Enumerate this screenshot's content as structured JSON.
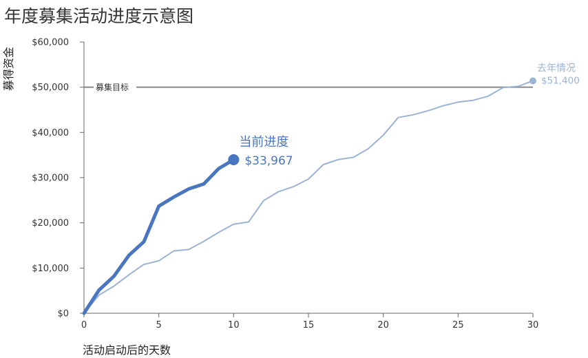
{
  "chart_data": {
    "type": "line",
    "title": "年度募集活动进度示意图",
    "xlabel": "活动启动后的天数",
    "ylabel": "募得资金",
    "xlim": [
      0,
      30
    ],
    "ylim": [
      0,
      60000
    ],
    "x_ticks": [
      0,
      5,
      10,
      15,
      20,
      25,
      30
    ],
    "y_ticks": [
      0,
      10000,
      20000,
      30000,
      40000,
      50000,
      60000
    ],
    "y_tick_labels": [
      "$0",
      "$10,000",
      "$20,000",
      "$30,000",
      "$40,000",
      "$50,000",
      "$60,000"
    ],
    "grid": false,
    "legend": "none",
    "target": {
      "label": "募集目标",
      "value": 50000,
      "color": "#888888"
    },
    "series": [
      {
        "name": "去年情况",
        "color": "#9ab3d5",
        "end_value_label": "$51,400",
        "x": [
          0,
          1,
          2,
          3,
          4,
          5,
          6,
          7,
          8,
          9,
          10,
          11,
          12,
          13,
          14,
          15,
          16,
          17,
          18,
          19,
          20,
          21,
          22,
          23,
          24,
          25,
          26,
          27,
          28,
          29,
          30
        ],
        "y": [
          0,
          4000,
          6000,
          8500,
          10800,
          11600,
          13800,
          14100,
          15900,
          17900,
          19700,
          20200,
          24900,
          26900,
          28000,
          29700,
          32900,
          34000,
          34500,
          36400,
          39400,
          43300,
          43900,
          44800,
          45900,
          46700,
          47100,
          48000,
          49900,
          50200,
          51400
        ]
      },
      {
        "name": "当前进度",
        "color": "#4a76bf",
        "end_value_label": "$33,967",
        "x": [
          0,
          1,
          2,
          3,
          4,
          5,
          6,
          7,
          8,
          9,
          10
        ],
        "y": [
          0,
          5100,
          8200,
          12800,
          15800,
          23700,
          25700,
          27500,
          28600,
          32000,
          33967
        ]
      }
    ]
  }
}
